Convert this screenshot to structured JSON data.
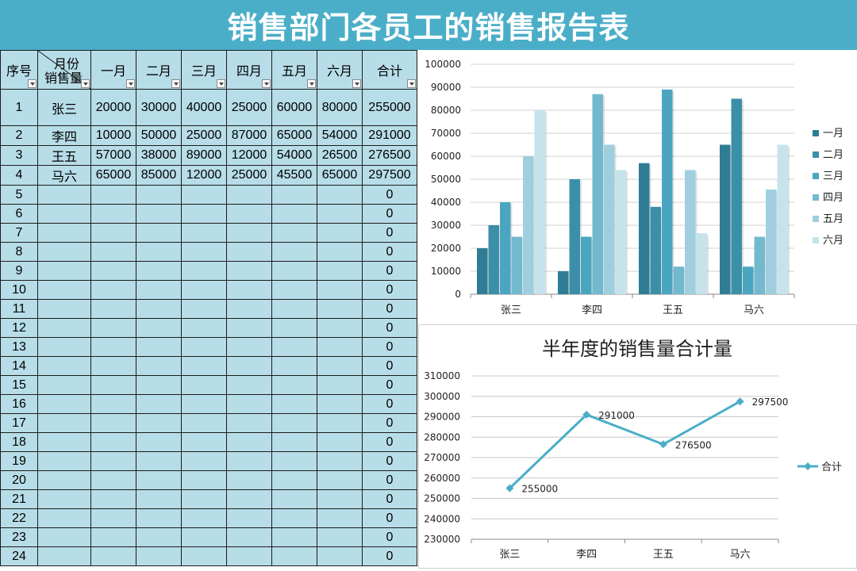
{
  "title": "销售部门各员工的销售报告表",
  "table": {
    "headers": {
      "seq": "序号",
      "diag_top": "月份",
      "diag_bottom": "销售量",
      "months": [
        "一月",
        "二月",
        "三月",
        "四月",
        "五月",
        "六月"
      ],
      "total": "合计"
    },
    "rows": [
      {
        "seq": "1",
        "name": "张三",
        "values": [
          "20000",
          "30000",
          "40000",
          "25000",
          "60000",
          "80000"
        ],
        "total": "255000"
      },
      {
        "seq": "2",
        "name": "李四",
        "values": [
          "10000",
          "50000",
          "25000",
          "87000",
          "65000",
          "54000"
        ],
        "total": "291000"
      },
      {
        "seq": "3",
        "name": "王五",
        "values": [
          "57000",
          "38000",
          "89000",
          "12000",
          "54000",
          "26500"
        ],
        "total": "276500"
      },
      {
        "seq": "4",
        "name": "马六",
        "values": [
          "65000",
          "85000",
          "12000",
          "25000",
          "45500",
          "65000"
        ],
        "total": "297500"
      },
      {
        "seq": "5",
        "name": "",
        "values": [
          "",
          "",
          "",
          "",
          "",
          ""
        ],
        "total": "0"
      },
      {
        "seq": "6",
        "name": "",
        "values": [
          "",
          "",
          "",
          "",
          "",
          ""
        ],
        "total": "0"
      },
      {
        "seq": "7",
        "name": "",
        "values": [
          "",
          "",
          "",
          "",
          "",
          ""
        ],
        "total": "0"
      },
      {
        "seq": "8",
        "name": "",
        "values": [
          "",
          "",
          "",
          "",
          "",
          ""
        ],
        "total": "0"
      },
      {
        "seq": "9",
        "name": "",
        "values": [
          "",
          "",
          "",
          "",
          "",
          ""
        ],
        "total": "0"
      },
      {
        "seq": "10",
        "name": "",
        "values": [
          "",
          "",
          "",
          "",
          "",
          ""
        ],
        "total": "0"
      },
      {
        "seq": "11",
        "name": "",
        "values": [
          "",
          "",
          "",
          "",
          "",
          ""
        ],
        "total": "0"
      },
      {
        "seq": "12",
        "name": "",
        "values": [
          "",
          "",
          "",
          "",
          "",
          ""
        ],
        "total": "0"
      },
      {
        "seq": "13",
        "name": "",
        "values": [
          "",
          "",
          "",
          "",
          "",
          ""
        ],
        "total": "0"
      },
      {
        "seq": "14",
        "name": "",
        "values": [
          "",
          "",
          "",
          "",
          "",
          ""
        ],
        "total": "0"
      },
      {
        "seq": "15",
        "name": "",
        "values": [
          "",
          "",
          "",
          "",
          "",
          ""
        ],
        "total": "0"
      },
      {
        "seq": "16",
        "name": "",
        "values": [
          "",
          "",
          "",
          "",
          "",
          ""
        ],
        "total": "0"
      },
      {
        "seq": "17",
        "name": "",
        "values": [
          "",
          "",
          "",
          "",
          "",
          ""
        ],
        "total": "0"
      },
      {
        "seq": "18",
        "name": "",
        "values": [
          "",
          "",
          "",
          "",
          "",
          ""
        ],
        "total": "0"
      },
      {
        "seq": "19",
        "name": "",
        "values": [
          "",
          "",
          "",
          "",
          "",
          ""
        ],
        "total": "0"
      },
      {
        "seq": "20",
        "name": "",
        "values": [
          "",
          "",
          "",
          "",
          "",
          ""
        ],
        "total": "0"
      },
      {
        "seq": "21",
        "name": "",
        "values": [
          "",
          "",
          "",
          "",
          "",
          ""
        ],
        "total": "0"
      },
      {
        "seq": "22",
        "name": "",
        "values": [
          "",
          "",
          "",
          "",
          "",
          ""
        ],
        "total": "0"
      },
      {
        "seq": "23",
        "name": "",
        "values": [
          "",
          "",
          "",
          "",
          "",
          ""
        ],
        "total": "0"
      },
      {
        "seq": "24",
        "name": "",
        "values": [
          "",
          "",
          "",
          "",
          "",
          ""
        ],
        "total": "0"
      }
    ]
  },
  "chart_data": [
    {
      "type": "bar",
      "title": "",
      "categories": [
        "张三",
        "李四",
        "王五",
        "马六"
      ],
      "series": [
        {
          "name": "一月",
          "values": [
            20000,
            10000,
            57000,
            65000
          ],
          "color": "#2e7d94"
        },
        {
          "name": "二月",
          "values": [
            30000,
            50000,
            38000,
            85000
          ],
          "color": "#3b8fa8"
        },
        {
          "name": "三月",
          "values": [
            40000,
            25000,
            89000,
            12000
          ],
          "color": "#4aa6c0"
        },
        {
          "name": "四月",
          "values": [
            25000,
            87000,
            12000,
            25000
          ],
          "color": "#72b9cf"
        },
        {
          "name": "五月",
          "values": [
            60000,
            65000,
            54000,
            45500
          ],
          "color": "#9fcfde"
        },
        {
          "name": "六月",
          "values": [
            80000,
            54000,
            26500,
            65000
          ],
          "color": "#c6e3ec"
        }
      ],
      "ylim": [
        0,
        100000
      ],
      "yticks": [
        0,
        10000,
        20000,
        30000,
        40000,
        50000,
        60000,
        70000,
        80000,
        90000,
        100000
      ],
      "grid": true,
      "legend": "right"
    },
    {
      "type": "line",
      "title": "半年度的销售量合计量",
      "categories": [
        "张三",
        "李四",
        "王五",
        "马六"
      ],
      "series": [
        {
          "name": "合计",
          "values": [
            255000,
            291000,
            276500,
            297500
          ],
          "color": "#4aaec8"
        }
      ],
      "ylim": [
        230000,
        310000
      ],
      "yticks": [
        230000,
        240000,
        250000,
        260000,
        270000,
        280000,
        290000,
        300000,
        310000
      ],
      "grid": true,
      "legend": "right",
      "data_labels": true
    }
  ]
}
